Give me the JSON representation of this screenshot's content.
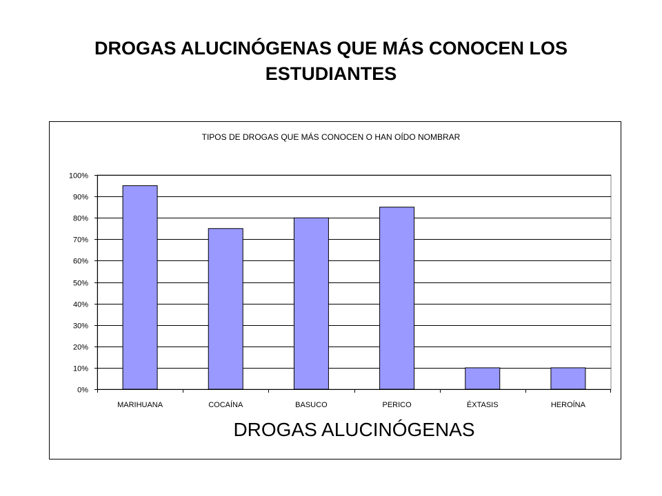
{
  "page": {
    "title": "DROGAS ALUCINÓGENAS QUE MÁS CONOCEN LOS ESTUDIANTES"
  },
  "colors": {
    "bar_fill": "#9999ff",
    "plot_background": "#ffffff",
    "gridline": "#000000"
  },
  "chart_data": {
    "type": "bar",
    "title": "TIPOS DE DROGAS QUE MÁS CONOCEN O HAN OÍDO NOMBRAR",
    "xlabel": "DROGAS ALUCINÓGENAS",
    "ylabel": "",
    "categories": [
      "MARIHUANA",
      "COCAÍNA",
      "BASUCO",
      "PERICO",
      "ÉXTASIS",
      "HEROÍNA"
    ],
    "values": [
      95,
      75,
      80,
      85,
      10,
      10
    ],
    "value_unit": "%",
    "ylim": [
      0,
      100
    ],
    "yticks": [
      {
        "value": 0,
        "label": "0%"
      },
      {
        "value": 10,
        "label": "10%"
      },
      {
        "value": 20,
        "label": "20%"
      },
      {
        "value": 30,
        "label": "30%"
      },
      {
        "value": 40,
        "label": "40%"
      },
      {
        "value": 50,
        "label": "50%"
      },
      {
        "value": 60,
        "label": "60%"
      },
      {
        "value": 70,
        "label": "70%"
      },
      {
        "value": 80,
        "label": "80%"
      },
      {
        "value": 90,
        "label": "90%"
      },
      {
        "value": 100,
        "label": "100%"
      }
    ],
    "grid": true,
    "legend": "none"
  }
}
